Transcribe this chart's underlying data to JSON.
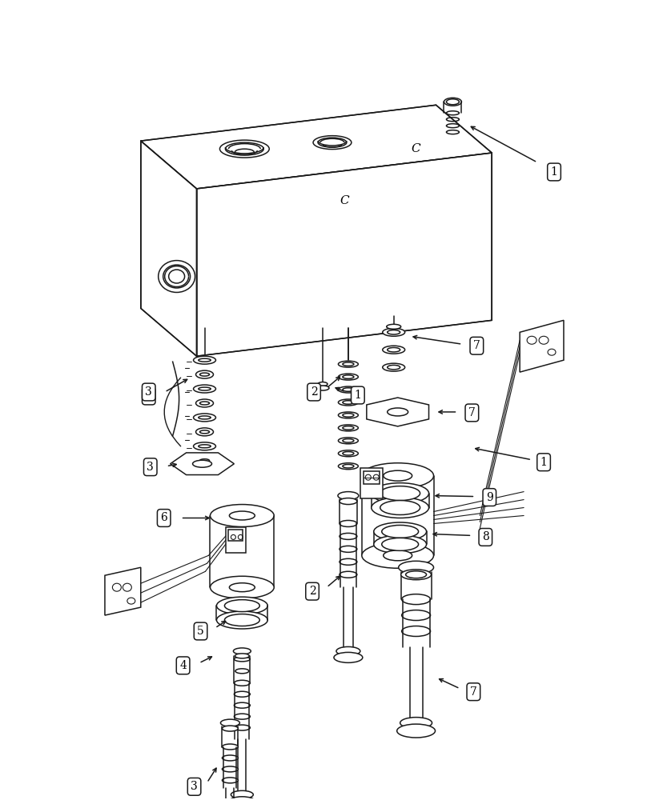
{
  "bg_color": "#ffffff",
  "line_color": "#1a1a1a",
  "lw": 1.1,
  "fig_width": 8.08,
  "fig_height": 10.0
}
